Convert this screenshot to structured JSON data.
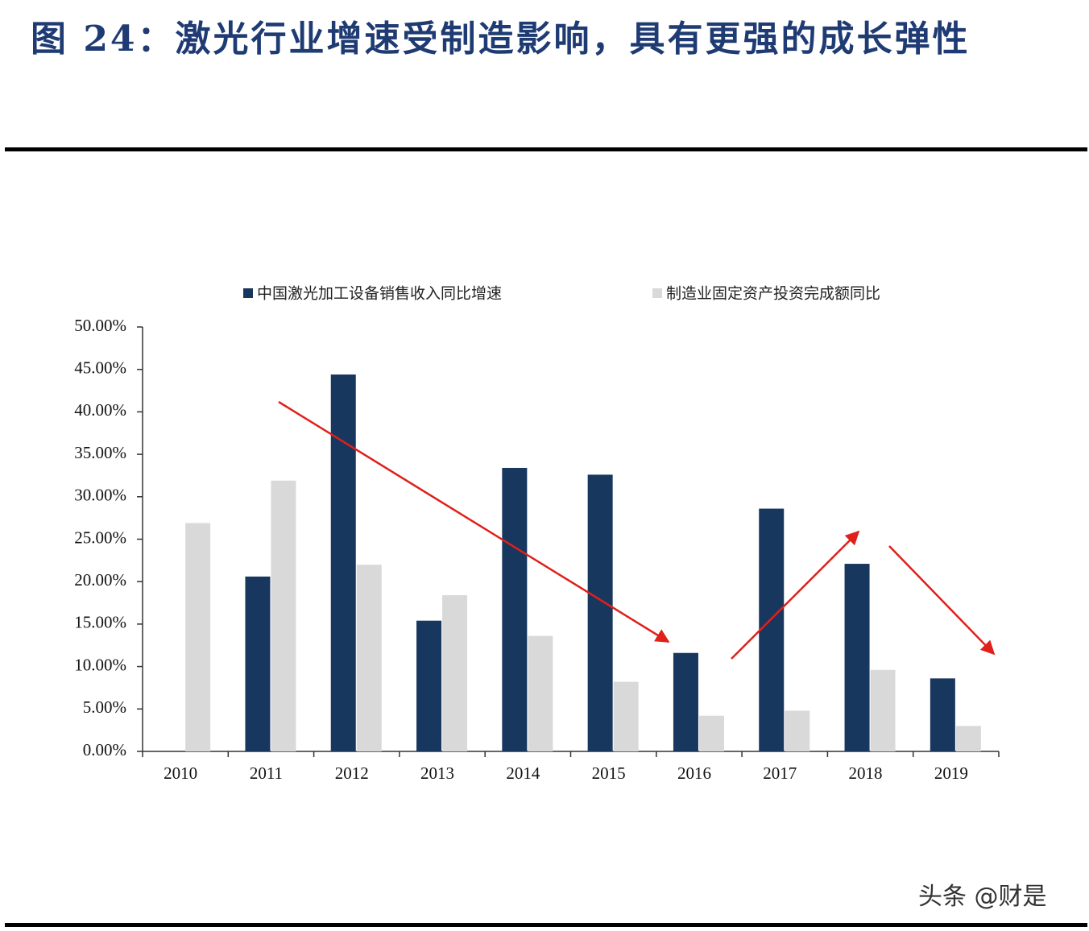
{
  "header": {
    "title": "图 24：激光行业增速受制造影响，具有更强的成长弹性"
  },
  "chart_data": {
    "type": "bar",
    "categories": [
      "2010",
      "2011",
      "2012",
      "2013",
      "2014",
      "2015",
      "2016",
      "2017",
      "2018",
      "2019"
    ],
    "series": [
      {
        "name": "中国激光加工设备销售收入同比增速",
        "color": "#17375e",
        "values": [
          null,
          20.6,
          44.4,
          15.4,
          33.4,
          32.6,
          11.6,
          28.6,
          22.1,
          8.6
        ]
      },
      {
        "name": "制造业固定资产投资完成额同比",
        "color": "#d9d9d9",
        "values": [
          26.9,
          31.9,
          22.0,
          18.4,
          13.6,
          8.2,
          4.2,
          4.8,
          9.6,
          3.0
        ]
      }
    ],
    "ylim": [
      0,
      50
    ],
    "yticks": [
      {
        "value": 0,
        "label": "0.00%"
      },
      {
        "value": 5,
        "label": "5.00%"
      },
      {
        "value": 10,
        "label": "10.00%"
      },
      {
        "value": 15,
        "label": "15.00%"
      },
      {
        "value": 20,
        "label": "20.00%"
      },
      {
        "value": 25,
        "label": "25.00%"
      },
      {
        "value": 30,
        "label": "30.00%"
      },
      {
        "value": 35,
        "label": "35.00%"
      },
      {
        "value": 40,
        "label": "40.00%"
      },
      {
        "value": 45,
        "label": "45.00%"
      },
      {
        "value": 50,
        "label": "50.00%"
      }
    ],
    "grid": false
  },
  "watermark": "头条 @财是"
}
